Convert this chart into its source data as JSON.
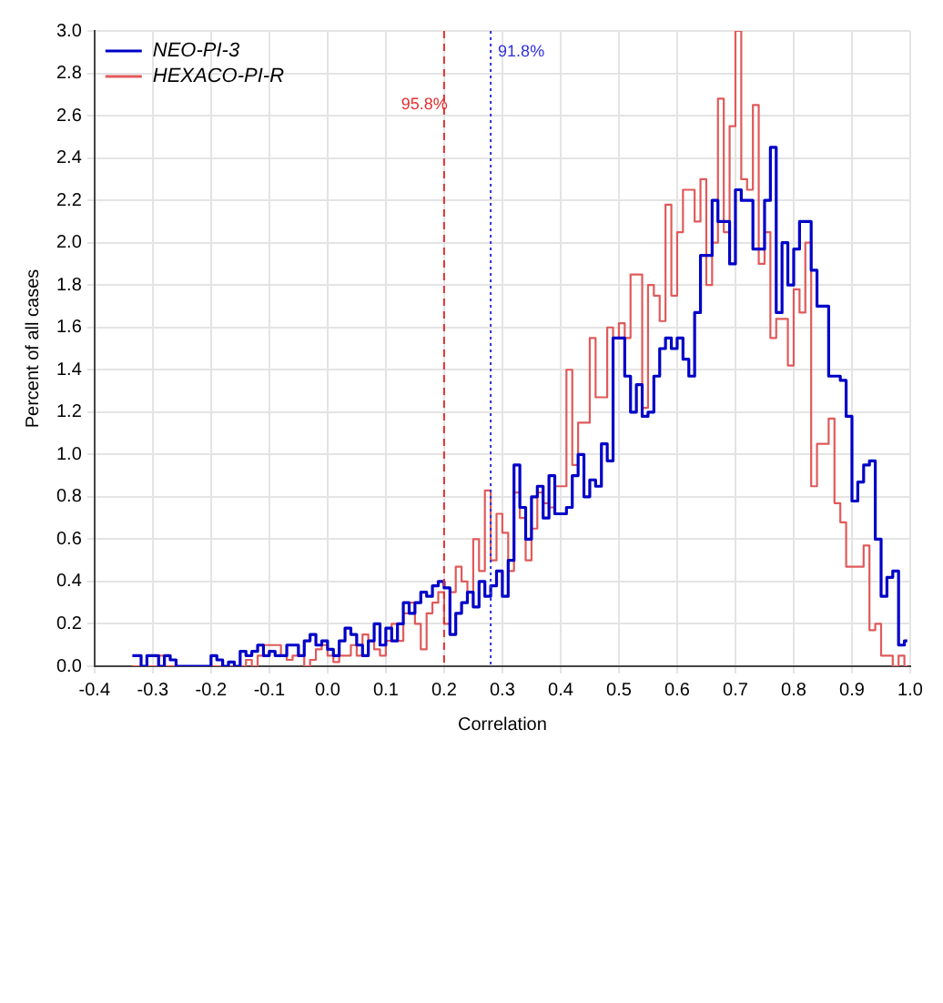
{
  "chart_data": {
    "type": "step",
    "xlabel": "Correlation",
    "ylabel": "Percent of all cases",
    "x": [
      -0.335,
      -0.325,
      -0.315,
      -0.305,
      -0.295,
      -0.285,
      -0.275,
      -0.265,
      -0.255,
      -0.245,
      -0.235,
      -0.225,
      -0.215,
      -0.205,
      -0.195,
      -0.185,
      -0.175,
      -0.165,
      -0.155,
      -0.145,
      -0.135,
      -0.125,
      -0.115,
      -0.105,
      -0.095,
      -0.085,
      -0.075,
      -0.065,
      -0.055,
      -0.045,
      -0.035,
      -0.025,
      -0.015,
      -0.005,
      0.005,
      0.015,
      0.025,
      0.035,
      0.045,
      0.055,
      0.065,
      0.075,
      0.085,
      0.095,
      0.105,
      0.115,
      0.125,
      0.135,
      0.145,
      0.155,
      0.165,
      0.175,
      0.185,
      0.195,
      0.205,
      0.215,
      0.225,
      0.235,
      0.245,
      0.255,
      0.265,
      0.275,
      0.285,
      0.295,
      0.305,
      0.315,
      0.325,
      0.335,
      0.345,
      0.355,
      0.365,
      0.375,
      0.385,
      0.395,
      0.405,
      0.415,
      0.425,
      0.435,
      0.445,
      0.455,
      0.465,
      0.475,
      0.485,
      0.495,
      0.505,
      0.515,
      0.525,
      0.535,
      0.545,
      0.555,
      0.565,
      0.575,
      0.585,
      0.595,
      0.605,
      0.615,
      0.625,
      0.635,
      0.645,
      0.655,
      0.665,
      0.675,
      0.685,
      0.695,
      0.705,
      0.715,
      0.725,
      0.735,
      0.745,
      0.755,
      0.765,
      0.775,
      0.785,
      0.795,
      0.805,
      0.815,
      0.825,
      0.835,
      0.845,
      0.855,
      0.865,
      0.875,
      0.885,
      0.895,
      0.905,
      0.915,
      0.925,
      0.935,
      0.945,
      0.955,
      0.965,
      0.975,
      0.985,
      0.995
    ],
    "series": [
      {
        "name": "NEO-PI-3",
        "color": "#0000c8",
        "values": [
          0.05,
          0.05,
          0,
          0.05,
          0.05,
          0,
          0.05,
          0.03,
          0,
          0,
          0,
          0,
          0,
          0,
          0.05,
          0.03,
          0,
          0.02,
          0,
          0.07,
          0.05,
          0.07,
          0.1,
          0.05,
          0.07,
          0.05,
          0.05,
          0.1,
          0.1,
          0.05,
          0.12,
          0.15,
          0.1,
          0.12,
          0.08,
          0.05,
          0.12,
          0.18,
          0.15,
          0.1,
          0.05,
          0.12,
          0.2,
          0.1,
          0.18,
          0.12,
          0.2,
          0.3,
          0.25,
          0.3,
          0.35,
          0.33,
          0.38,
          0.4,
          0.37,
          0.15,
          0.25,
          0.3,
          0.35,
          0.28,
          0.4,
          0.33,
          0.38,
          0.45,
          0.33,
          0.5,
          0.95,
          0.75,
          0.6,
          0.8,
          0.85,
          0.7,
          0.9,
          0.72,
          0.72,
          0.75,
          0.9,
          1.0,
          0.8,
          0.88,
          0.85,
          1.05,
          0.97,
          1.55,
          1.55,
          1.37,
          1.2,
          1.33,
          1.18,
          1.2,
          1.37,
          1.5,
          1.55,
          1.5,
          1.55,
          1.45,
          1.37,
          1.67,
          1.94,
          1.94,
          2.2,
          2.1,
          2.1,
          1.9,
          2.25,
          2.2,
          2.2,
          1.97,
          1.97,
          2.2,
          2.45,
          1.67,
          2.0,
          1.8,
          1.97,
          2.1,
          2.1,
          1.87,
          1.7,
          1.7,
          1.37,
          1.37,
          1.35,
          1.18,
          0.78,
          0.87,
          0.95,
          0.97,
          0.6,
          0.33,
          0.42,
          0.45,
          0.1,
          0.12
        ]
      },
      {
        "name": "HEXACO-PI-R",
        "color": "#e05a5a",
        "values": [
          0,
          0,
          0,
          0,
          0,
          0.05,
          0,
          0,
          0,
          0,
          0,
          0,
          0,
          0,
          0,
          0,
          0,
          0,
          0,
          0,
          0.03,
          0,
          0.05,
          0.1,
          0.1,
          0.1,
          0.05,
          0.03,
          0.05,
          0.05,
          0,
          0.03,
          0.08,
          0.1,
          0.05,
          0.02,
          0.05,
          0.05,
          0.1,
          0.05,
          0.15,
          0.12,
          0.08,
          0.05,
          0.12,
          0.2,
          0.12,
          0.25,
          0.3,
          0.2,
          0.08,
          0.25,
          0.3,
          0.35,
          0.2,
          0.35,
          0.47,
          0.4,
          0.35,
          0.6,
          0.45,
          0.83,
          0.5,
          0.72,
          0.63,
          0.45,
          0.82,
          0.7,
          0.5,
          0.65,
          0.82,
          0.77,
          0.75,
          0.85,
          0.85,
          1.4,
          0.95,
          1.15,
          1.15,
          1.55,
          1.27,
          1.27,
          1.6,
          1.55,
          1.62,
          1.55,
          1.85,
          1.85,
          1.22,
          1.8,
          1.75,
          1.63,
          2.18,
          1.75,
          2.05,
          2.25,
          2.25,
          2.1,
          2.3,
          1.8,
          2.0,
          2.68,
          2.05,
          2.55,
          3.0,
          2.3,
          2.25,
          2.65,
          1.9,
          2.05,
          1.55,
          1.64,
          1.64,
          1.42,
          1.78,
          1.67,
          2.0,
          0.85,
          1.05,
          1.05,
          1.17,
          0.77,
          0.68,
          0.47,
          0.47,
          0.47,
          0.57,
          0.17,
          0.2,
          0.05,
          0.05,
          0,
          0.05,
          0
        ]
      }
    ],
    "xlim": [
      -0.4,
      1.0
    ],
    "xticks": [
      -0.4,
      -0.3,
      -0.2,
      -0.1,
      {
        "value": 0,
        "label": "0.0"
      },
      0.1,
      0.2,
      0.3,
      0.4,
      0.5,
      0.6,
      0.7,
      0.8,
      0.9,
      {
        "value": 1,
        "label": "1.0"
      }
    ],
    "ylim": [
      0,
      3
    ],
    "yticks": [
      {
        "value": 0,
        "label": "0.0"
      },
      0.2,
      0.4,
      0.6,
      0.8,
      {
        "value": 1,
        "label": "1.0"
      },
      1.2,
      1.4,
      1.6,
      1.8,
      {
        "value": 2,
        "label": "2.0"
      },
      2.2,
      2.4,
      2.6,
      2.8,
      {
        "value": 3,
        "label": "3.0"
      }
    ],
    "ref_lines": [
      {
        "axis": "x",
        "value": 0.2,
        "color": "#e03030",
        "line_style": "dashed"
      },
      {
        "axis": "x",
        "value": 0.28,
        "color": "#3030e0",
        "line_style": "dotted"
      }
    ],
    "annotations": [
      {
        "text": "95.8%",
        "x": 0.2,
        "y": 2.65
      },
      {
        "text": "91.8%",
        "x": 0.28,
        "y": 2.9
      }
    ],
    "grid": true,
    "legend": "top left"
  }
}
